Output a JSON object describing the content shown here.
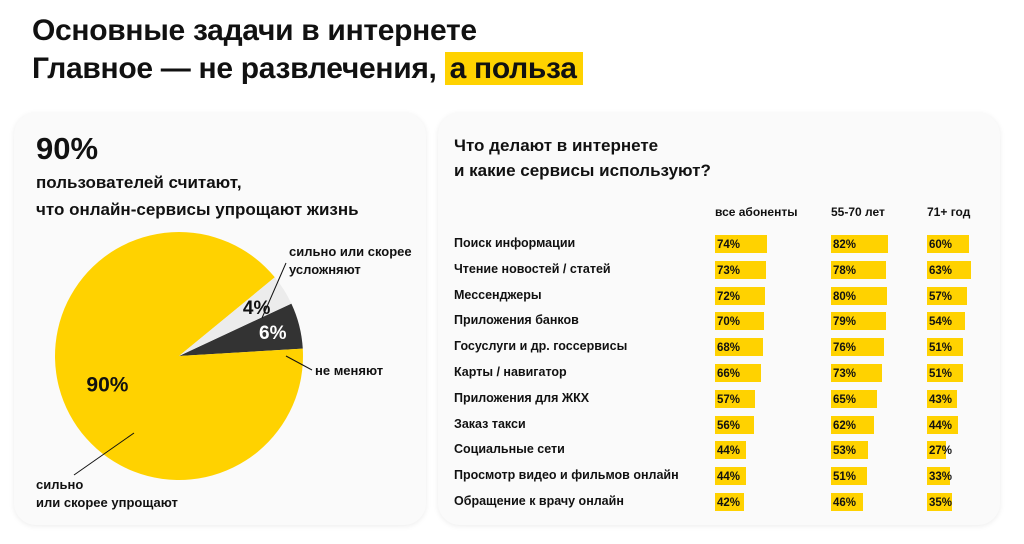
{
  "title": {
    "line1": "Основные задачи в интернете",
    "line2_prefix": "Главное — не развлечения,",
    "line2_highlight": "а польза"
  },
  "left_card": {
    "big_pct": "90%",
    "subhead_line1": "пользователей считают,",
    "subhead_line2": "что онлайн-сервисы упрощают жизнь",
    "callouts": {
      "complicate_line1": "сильно или скорее",
      "complicate_line2": "усложняют",
      "no_change": "не меняют",
      "simplify_line1": "сильно",
      "simplify_line2": "или скорее упрощают"
    }
  },
  "right_card": {
    "question_line1": "Что делают в интернете",
    "question_line2": "и какие сервисы используют?"
  },
  "colors": {
    "accent": "#ffd200",
    "dark_slice": "#333333",
    "light_slice": "#ececec"
  },
  "chart_data": [
    {
      "type": "pie",
      "slices": [
        {
          "label": "сильно или скорее упрощают",
          "value": 90,
          "value_label": "90%",
          "color": "#ffd200"
        },
        {
          "label": "не меняют",
          "value": 6,
          "value_label": "6%",
          "color": "#333333"
        },
        {
          "label": "сильно или скорее усложняют",
          "value": 4,
          "value_label": "4%",
          "color": "#ececec"
        }
      ]
    },
    {
      "type": "bar",
      "orientation": "horizontal",
      "categories": [
        "Поиск информации",
        "Чтение новостей / статей",
        "Мессенджеры",
        "Приложения банков",
        "Госуслуги и др. госсервисы",
        "Карты / навигатор",
        "Приложения для ЖКХ",
        "Заказ такси",
        "Социальные сети",
        "Просмотр видео и фильмов онлайн",
        "Обращение к врачу онлайн"
      ],
      "series": [
        {
          "name": "все абоненты",
          "values": [
            74,
            73,
            72,
            70,
            68,
            66,
            57,
            56,
            44,
            44,
            42
          ]
        },
        {
          "name": "55-70 лет",
          "values": [
            82,
            78,
            80,
            79,
            76,
            73,
            65,
            62,
            53,
            51,
            46
          ]
        },
        {
          "name": "71+ год",
          "values": [
            60,
            63,
            57,
            54,
            51,
            51,
            43,
            44,
            27,
            33,
            35
          ]
        }
      ],
      "value_suffix": "%"
    }
  ]
}
